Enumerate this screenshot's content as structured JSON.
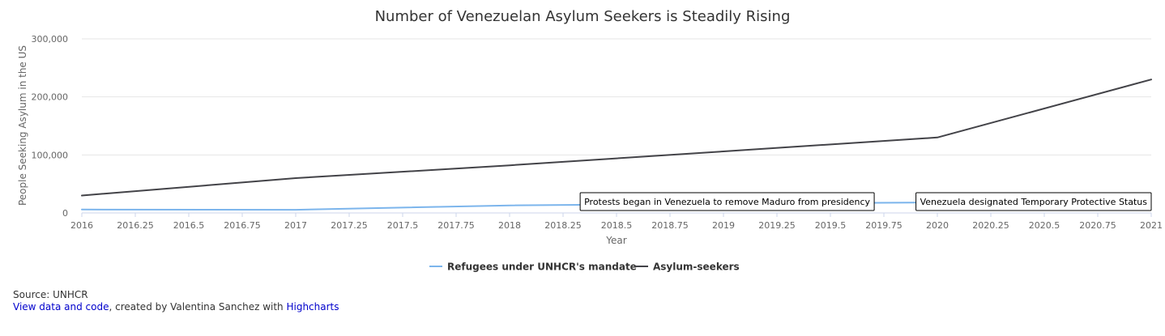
{
  "chart_data": {
    "type": "line",
    "title": "Number of Venezuelan Asylum Seekers is Steadily Rising",
    "xlabel": "Year",
    "ylabel": "People Seeking Asylum in the US",
    "xlim": [
      2016,
      2021
    ],
    "ylim": [
      0,
      300000
    ],
    "x_ticks": [
      "2016",
      "2016.25",
      "2016.5",
      "2016.75",
      "2017",
      "2017.25",
      "2017.5",
      "2017.75",
      "2018",
      "2018.25",
      "2018.5",
      "2018.75",
      "2019",
      "2019.25",
      "2019.5",
      "2019.75",
      "2020",
      "2020.25",
      "2020.5",
      "2020.75",
      "2021"
    ],
    "y_ticks": [
      "0",
      "100,000",
      "200,000",
      "300,000"
    ],
    "grid": true,
    "legend_position": "bottom-center",
    "series": [
      {
        "name": "Refugees under UNHCR's mandate",
        "color": "#7cb5ec",
        "x": [
          2016,
          2017,
          2018,
          2019,
          2020
        ],
        "values": [
          5800,
          5500,
          13000,
          16000,
          18000
        ]
      },
      {
        "name": "Asylum-seekers",
        "color": "#434348",
        "x": [
          2016,
          2017,
          2018,
          2019,
          2020,
          2021
        ],
        "values": [
          30000,
          60000,
          82000,
          106000,
          130000,
          230000
        ]
      }
    ],
    "annotations": [
      {
        "text": "Protests began in Venezuela to remove Maduro from presidency",
        "x": 2018.33,
        "y": 13000
      },
      {
        "text": "Venezuela designated Temporary Protective Status",
        "x": 2020,
        "y": 18000
      }
    ]
  },
  "footer": {
    "source": "Source: UNHCR",
    "link_text": "View data and code",
    "credit_text": ", created by Valentina Sanchez with ",
    "highcharts_text": "Highcharts"
  }
}
